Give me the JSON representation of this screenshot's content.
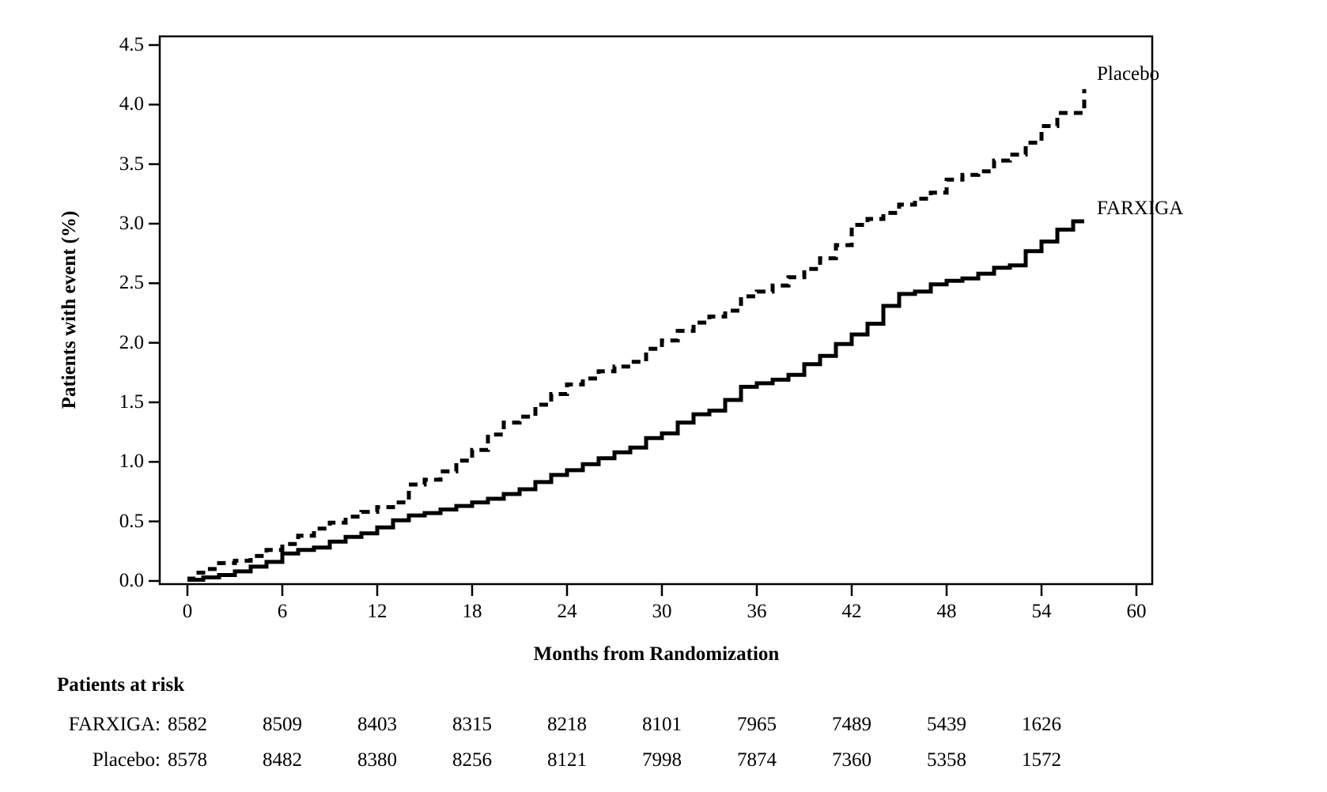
{
  "chart_data": {
    "type": "line",
    "subtype": "kaplan-meier-step",
    "title": "",
    "xlabel": "Months from Randomization",
    "ylabel": "Patients with event (%)",
    "xlim": [
      0,
      61
    ],
    "ylim": [
      0,
      4.5
    ],
    "grid": false,
    "x_ticks": [
      0,
      6,
      12,
      18,
      24,
      30,
      36,
      42,
      48,
      54,
      60
    ],
    "y_ticks": [
      "0.0",
      "0.5",
      "1.0",
      "1.5",
      "2.0",
      "2.5",
      "3.0",
      "3.5",
      "4.0",
      "4.5"
    ],
    "line_color": "#000000",
    "legend_position": "right-end-of-curves",
    "series": [
      {
        "name": "Placebo",
        "style": "dashed",
        "x": [
          0,
          0.5,
          1,
          2,
          3,
          4,
          5,
          6,
          7,
          8,
          9,
          10,
          11,
          12,
          13,
          14,
          15,
          16,
          17,
          18,
          19,
          20,
          21,
          22,
          23,
          24,
          25,
          26,
          27,
          28,
          29,
          30,
          31,
          32,
          33,
          34,
          35,
          36,
          37,
          38,
          39,
          40,
          41,
          42,
          43,
          44,
          45,
          46,
          47,
          48,
          49,
          50,
          51,
          52,
          53,
          54,
          55,
          56,
          56.7
        ],
        "y": [
          0.02,
          0.07,
          0.1,
          0.15,
          0.17,
          0.21,
          0.26,
          0.31,
          0.38,
          0.44,
          0.49,
          0.54,
          0.58,
          0.62,
          0.66,
          0.81,
          0.85,
          0.92,
          1.01,
          1.1,
          1.23,
          1.33,
          1.38,
          1.48,
          1.57,
          1.65,
          1.7,
          1.76,
          1.8,
          1.84,
          1.95,
          2.02,
          2.1,
          2.17,
          2.22,
          2.27,
          2.39,
          2.43,
          2.48,
          2.55,
          2.62,
          2.71,
          2.82,
          2.99,
          3.04,
          3.09,
          3.16,
          3.21,
          3.26,
          3.37,
          3.41,
          3.44,
          3.53,
          3.58,
          3.68,
          3.82,
          3.93,
          3.93,
          4.13
        ]
      },
      {
        "name": "FARXIGA",
        "style": "solid",
        "x": [
          0,
          1,
          2,
          3,
          4,
          5,
          6,
          7,
          8,
          9,
          10,
          11,
          12,
          13,
          14,
          15,
          16,
          17,
          18,
          19,
          20,
          21,
          22,
          23,
          24,
          25,
          26,
          27,
          28,
          29,
          30,
          31,
          32,
          33,
          34,
          35,
          36,
          37,
          38,
          39,
          40,
          41,
          42,
          43,
          44,
          45,
          46,
          47,
          48,
          49,
          50,
          51,
          52,
          53,
          54,
          55,
          56,
          56.7
        ],
        "y": [
          0.01,
          0.03,
          0.05,
          0.08,
          0.12,
          0.16,
          0.23,
          0.26,
          0.28,
          0.33,
          0.37,
          0.4,
          0.45,
          0.51,
          0.55,
          0.57,
          0.6,
          0.63,
          0.66,
          0.69,
          0.73,
          0.77,
          0.83,
          0.89,
          0.93,
          0.98,
          1.03,
          1.08,
          1.12,
          1.2,
          1.24,
          1.33,
          1.4,
          1.43,
          1.52,
          1.63,
          1.66,
          1.69,
          1.73,
          1.82,
          1.89,
          1.99,
          2.07,
          2.16,
          2.31,
          2.41,
          2.43,
          2.49,
          2.52,
          2.54,
          2.58,
          2.63,
          2.65,
          2.77,
          2.85,
          2.95,
          3.02,
          3.02
        ]
      }
    ]
  },
  "legend": {
    "placebo_label": "Placebo",
    "farxiga_label": "FARXIGA"
  },
  "axes": {
    "y_title": "Patients with event (%)",
    "x_title": "Months from Randomization"
  },
  "risk_table": {
    "heading": "Patients at risk",
    "months": [
      0,
      6,
      12,
      18,
      24,
      30,
      36,
      42,
      48,
      54
    ],
    "rows": [
      {
        "label": "FARXIGA:",
        "values": [
          "8582",
          "8509",
          "8403",
          "8315",
          "8218",
          "8101",
          "7965",
          "7489",
          "5439",
          "1626"
        ]
      },
      {
        "label": "Placebo:",
        "values": [
          "8578",
          "8482",
          "8380",
          "8256",
          "8121",
          "7998",
          "7874",
          "7360",
          "5358",
          "1572"
        ]
      }
    ]
  },
  "colors": {
    "foreground": "#000000",
    "background": "#ffffff"
  }
}
